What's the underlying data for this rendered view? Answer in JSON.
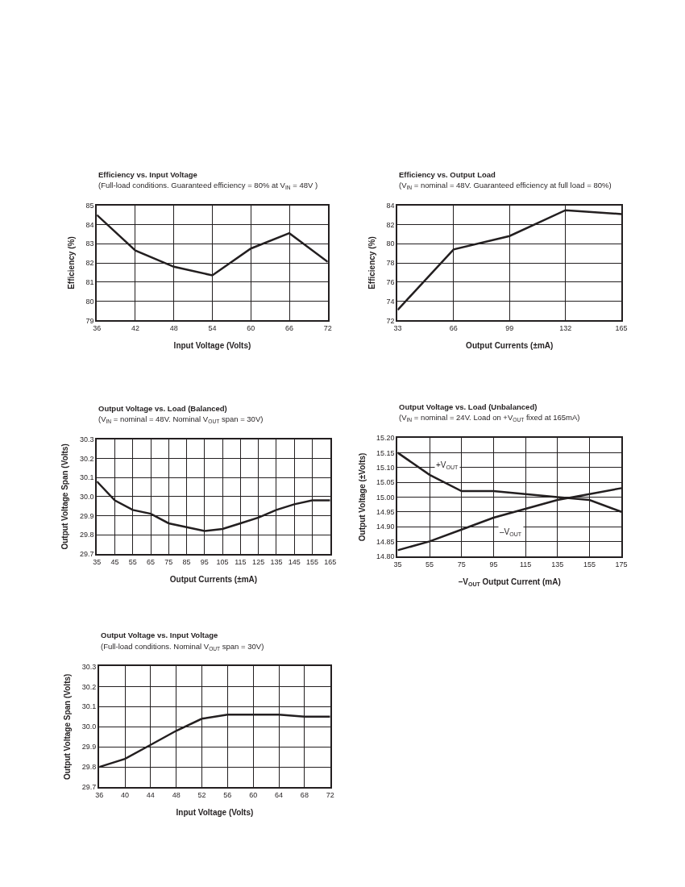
{
  "chart_data": [
    {
      "type": "line",
      "title": "Efficiency vs. Input Voltage",
      "subtitle": "(Full-load conditions. Guaranteed efficiency = 80% at V$_{IN}$ = 48V )",
      "xlabel": "Input Voltage (Volts)",
      "ylabel": "Efficiency (%)",
      "x": [
        36,
        42,
        48,
        54,
        60,
        66,
        72
      ],
      "series": [
        {
          "color": "#231f20",
          "values": [
            84.5,
            82.65,
            81.8,
            81.35,
            82.75,
            83.55,
            82.05
          ]
        }
      ],
      "xlim": [
        36,
        72
      ],
      "xticks": [
        36,
        42,
        48,
        54,
        60,
        66,
        72
      ],
      "ylim": [
        79,
        85
      ],
      "yticks": [
        79,
        80,
        81,
        82,
        83,
        84,
        85
      ],
      "grid": true
    },
    {
      "type": "line",
      "title": "Efficiency vs. Output Load",
      "subtitle": "(V$_{IN}$ = nominal = 48V. Guaranteed efficiency at full load = 80%)",
      "xlabel": "Output Currents (±mA)",
      "ylabel": "Efficiency (%)",
      "x": [
        33,
        66,
        99,
        132,
        165
      ],
      "series": [
        {
          "color": "#231f20",
          "values": [
            73.1,
            79.4,
            80.8,
            83.5,
            83.1
          ]
        }
      ],
      "xlim": [
        33,
        165
      ],
      "xticks": [
        33,
        66,
        99,
        132,
        165
      ],
      "ylim": [
        72,
        84
      ],
      "yticks": [
        72,
        74,
        76,
        78,
        80,
        82,
        84
      ],
      "grid": true
    },
    {
      "type": "line",
      "title": "Output Voltage vs. Load (Balanced)",
      "subtitle": "(V$_{IN}$ = nominal = 48V. Nominal V$_{OUT}$ span = 30V)",
      "xlabel": "Output Currents (±mA)",
      "ylabel": "Output Voltage Span (Volts)",
      "x": [
        35,
        45,
        55,
        65,
        75,
        85,
        95,
        105,
        115,
        125,
        135,
        145,
        155,
        165
      ],
      "series": [
        {
          "color": "#231f20",
          "values": [
            30.08,
            29.98,
            29.93,
            29.91,
            29.86,
            29.84,
            29.82,
            29.83,
            29.86,
            29.89,
            29.93,
            29.96,
            29.98,
            29.98
          ]
        }
      ],
      "xlim": [
        35,
        165
      ],
      "xticks": [
        35,
        45,
        55,
        65,
        75,
        85,
        95,
        105,
        115,
        125,
        135,
        145,
        155,
        165
      ],
      "ylim": [
        29.7,
        30.3
      ],
      "yticks": [
        {
          "value": 29.7,
          "label": "29.7"
        },
        {
          "value": 29.8,
          "label": "29.8"
        },
        {
          "value": 29.9,
          "label": "29.9"
        },
        {
          "value": 30.0,
          "label": "30.0"
        },
        {
          "value": 30.1,
          "label": "30.1"
        },
        {
          "value": 30.2,
          "label": "30.2"
        },
        {
          "value": 30.3,
          "label": "30.3"
        }
      ],
      "grid": true
    },
    {
      "type": "line",
      "title": "Output Voltage vs. Load (Unbalanced)",
      "subtitle": "(V$_{IN}$ = nominal = 24V. Load on +V$_{OUT}$ fixed at 165mA)",
      "xlabel": "–V$_{OUT}$ Output Current (mA)",
      "ylabel": "Output Voltage (±Volts)",
      "x": [
        35,
        55,
        75,
        95,
        115,
        135,
        155,
        175
      ],
      "series": [
        {
          "name": "+V$_{OUT}$",
          "color": "#231f20",
          "values": [
            15.15,
            15.075,
            15.02,
            15.02,
            15.01,
            15.0,
            14.99,
            14.95
          ]
        },
        {
          "name": "–V$_{OUT}$",
          "color": "#231f20",
          "values": [
            14.82,
            14.85,
            14.89,
            14.93,
            14.96,
            14.99,
            15.01,
            15.03
          ]
        }
      ],
      "xlim": [
        35,
        175
      ],
      "xticks": [
        35,
        55,
        75,
        95,
        115,
        135,
        155,
        175
      ],
      "ylim": [
        14.8,
        15.2
      ],
      "yticks": [
        {
          "value": 14.8,
          "label": "14.80"
        },
        {
          "value": 14.85,
          "label": "14.85"
        },
        {
          "value": 14.9,
          "label": "14.90"
        },
        {
          "value": 14.95,
          "label": "14.95"
        },
        {
          "value": 15.0,
          "label": "15.00"
        },
        {
          "value": 15.05,
          "label": "15.05"
        },
        {
          "value": 15.1,
          "label": "15.10"
        },
        {
          "value": 15.15,
          "label": "15.15"
        },
        {
          "value": 15.2,
          "label": "15.20"
        }
      ],
      "grid": true
    },
    {
      "type": "line",
      "title": "Output Voltage vs. Input Voltage",
      "subtitle": "(Full-load conditions. Nominal V$_{OUT}$ span = 30V)",
      "xlabel": "Input Voltage (Volts)",
      "ylabel": "Output Voltage Span (Volts)",
      "x": [
        36,
        40,
        44,
        48,
        52,
        56,
        60,
        64,
        68,
        72
      ],
      "series": [
        {
          "color": "#231f20",
          "values": [
            29.8,
            29.84,
            29.91,
            29.98,
            30.04,
            30.06,
            30.06,
            30.06,
            30.05,
            30.05
          ]
        }
      ],
      "xlim": [
        36,
        72
      ],
      "xticks": [
        36,
        40,
        44,
        48,
        52,
        56,
        60,
        64,
        68,
        72
      ],
      "ylim": [
        29.7,
        30.3
      ],
      "yticks": [
        {
          "value": 29.7,
          "label": "29.7"
        },
        {
          "value": 29.8,
          "label": "29.8"
        },
        {
          "value": 29.9,
          "label": "29.9"
        },
        {
          "value": 30.0,
          "label": "30.0"
        },
        {
          "value": 30.1,
          "label": "30.1"
        },
        {
          "value": 30.2,
          "label": "30.2"
        },
        {
          "value": 30.3,
          "label": "30.3"
        }
      ],
      "grid": true
    }
  ]
}
